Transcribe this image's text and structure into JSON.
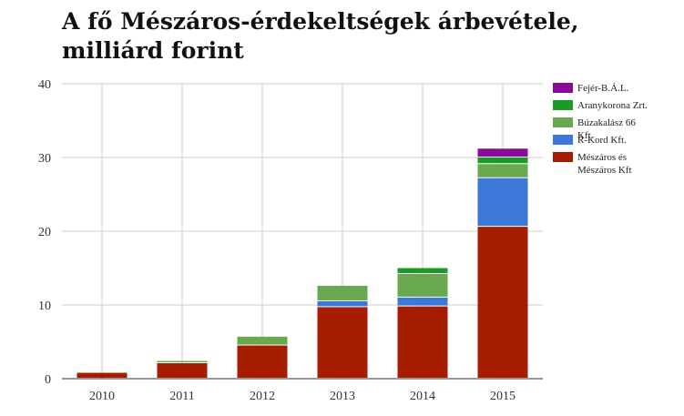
{
  "chart_data": {
    "type": "bar",
    "stacked": true,
    "title": "A fő Mészáros-érdekeltségek árbevétele, milliárd forint",
    "xlabel": "",
    "ylabel": "",
    "categories": [
      "2010",
      "2011",
      "2012",
      "2013",
      "2014",
      "2015"
    ],
    "ylim": [
      0,
      40
    ],
    "yticks": [
      "0",
      "10",
      "20",
      "30",
      "40"
    ],
    "grid": true,
    "legend_position": "right",
    "series": [
      {
        "name": "Mészáros és Mészáros Kft",
        "color": "#a61c00",
        "values": [
          0.8,
          2.1,
          4.5,
          9.7,
          9.8,
          20.6
        ]
      },
      {
        "name": "R-Kord Kft.",
        "color": "#3c78d8",
        "values": [
          0,
          0,
          0,
          0.8,
          1.2,
          6.6
        ]
      },
      {
        "name": "Búzakalász 66 Kft.",
        "color": "#6aa84f",
        "values": [
          0,
          0.3,
          1.2,
          2.1,
          3.2,
          1.9
        ]
      },
      {
        "name": "Aranykorona Zrt.",
        "color": "#1a9a27",
        "values": [
          0,
          0,
          0,
          0,
          0.8,
          0.9
        ]
      },
      {
        "name": "Fejér-B.Á.L.",
        "color": "#8b0a9b",
        "values": [
          0,
          0,
          0,
          0,
          0,
          1.2
        ]
      }
    ],
    "legend_order": [
      "Fejér-B.Á.L.",
      "Aranykorona Zrt.",
      "Búzakalász 66 Kft.",
      "R-Kord Kft.",
      "Mészáros és Mészáros Kft"
    ]
  }
}
